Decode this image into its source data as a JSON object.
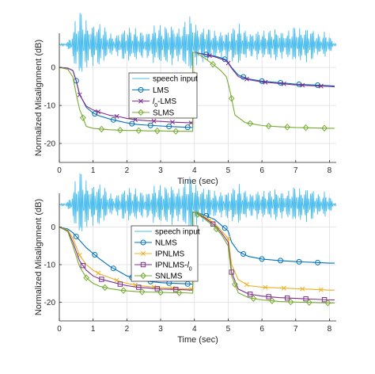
{
  "chart_data": [
    {
      "type": "line",
      "xlabel": "Time (sec)",
      "ylabel": "Normalized Misalignment (dB)",
      "xlim": [
        0,
        8.2
      ],
      "ylim": [
        -25,
        9
      ],
      "xticks": [
        0,
        1,
        2,
        3,
        4,
        5,
        6,
        7,
        8
      ],
      "yticks": [
        0,
        -10,
        -20
      ],
      "grid": true,
      "legend_position": "center",
      "speech_input": {
        "name": "speech input",
        "color": "#4dbeee",
        "baseline": 6
      },
      "series": [
        {
          "name": "LMS",
          "color": "#0072bd",
          "marker": "circle",
          "x": [
            0,
            0.25,
            0.4,
            0.5,
            0.6,
            0.8,
            1.0,
            1.2,
            1.5,
            1.8,
            2.0,
            2.3,
            2.6,
            3.0,
            3.4,
            3.7,
            3.95,
            4.02,
            4.1,
            4.3,
            4.6,
            4.8,
            4.95,
            5.1,
            5.3,
            5.6,
            6.0,
            6.5,
            7.0,
            7.5,
            8.0,
            8.15
          ],
          "y": [
            0,
            -0.2,
            -0.8,
            -3.5,
            -7.0,
            -10.5,
            -12.0,
            -12.8,
            -13.6,
            -14.2,
            -14.6,
            -15.0,
            -15.2,
            -15.4,
            -15.6,
            -15.7,
            -15.8,
            4.0,
            3.8,
            3.5,
            3.0,
            2.5,
            2.0,
            0.0,
            -2.0,
            -3.0,
            -3.6,
            -4.0,
            -4.4,
            -4.6,
            -4.8,
            -4.9
          ]
        },
        {
          "name": "l0-LMS",
          "color": "#7e2f8e",
          "marker": "x",
          "x": [
            0,
            0.25,
            0.4,
            0.5,
            0.6,
            0.8,
            1.0,
            1.2,
            1.5,
            1.8,
            2.0,
            2.3,
            2.6,
            3.0,
            3.4,
            3.7,
            3.95,
            4.02,
            4.1,
            4.3,
            4.6,
            4.8,
            4.95,
            5.1,
            5.3,
            5.6,
            6.0,
            6.5,
            7.0,
            7.5,
            8.0,
            8.15
          ],
          "y": [
            0,
            -0.2,
            -0.8,
            -3.5,
            -7.2,
            -10.2,
            -11.2,
            -11.8,
            -12.6,
            -13.0,
            -13.4,
            -13.8,
            -14.0,
            -14.2,
            -14.4,
            -14.5,
            -14.6,
            4.0,
            3.8,
            3.4,
            2.8,
            2.2,
            1.8,
            -0.2,
            -2.4,
            -3.2,
            -3.8,
            -4.2,
            -4.6,
            -4.8,
            -5.0,
            -5.1
          ]
        },
        {
          "name": "SLMS",
          "color": "#77ac30",
          "marker": "diamond",
          "x": [
            0,
            0.25,
            0.4,
            0.5,
            0.6,
            0.8,
            1.0,
            1.2,
            1.5,
            1.8,
            2.0,
            2.3,
            2.6,
            3.0,
            3.4,
            3.7,
            3.95,
            4.02,
            4.1,
            4.3,
            4.6,
            4.8,
            4.95,
            5.05,
            5.2,
            5.5,
            6.0,
            6.5,
            7.0,
            7.5,
            8.0,
            8.15
          ],
          "y": [
            0,
            -0.5,
            -2.5,
            -7.0,
            -11.0,
            -15.5,
            -16.0,
            -16.2,
            -16.4,
            -16.5,
            -16.6,
            -16.6,
            -16.7,
            -16.7,
            -16.8,
            -16.8,
            -16.8,
            4.0,
            3.6,
            2.5,
            0.5,
            -1.0,
            -2.5,
            -6.0,
            -12.5,
            -14.5,
            -15.3,
            -15.6,
            -15.8,
            -15.9,
            -16.0,
            -16.0
          ]
        }
      ]
    },
    {
      "type": "line",
      "xlabel": "Time (sec)",
      "ylabel": "Normalized Misalignment (dB)",
      "xlim": [
        0,
        8.2
      ],
      "ylim": [
        -25,
        9
      ],
      "xticks": [
        0,
        1,
        2,
        3,
        4,
        5,
        6,
        7,
        8
      ],
      "yticks": [
        0,
        -10,
        -20
      ],
      "grid": true,
      "legend_position": "center",
      "speech_input": {
        "name": "speech input",
        "color": "#4dbeee",
        "baseline": 6
      },
      "series": [
        {
          "name": "NLMS",
          "color": "#0072bd",
          "marker": "circle",
          "x": [
            0,
            0.25,
            0.4,
            0.6,
            0.8,
            1.0,
            1.2,
            1.5,
            1.8,
            2.0,
            2.3,
            2.6,
            3.0,
            3.4,
            3.7,
            3.95,
            4.02,
            4.1,
            4.3,
            4.6,
            4.8,
            5.0,
            5.1,
            5.3,
            5.6,
            6.0,
            6.5,
            7.0,
            7.5,
            8.0,
            8.15
          ],
          "y": [
            0,
            -0.5,
            -1.5,
            -3.5,
            -5.5,
            -7.0,
            -8.5,
            -10.5,
            -12.0,
            -13.0,
            -13.8,
            -14.4,
            -14.8,
            -15.0,
            -15.1,
            -15.2,
            4.0,
            3.8,
            3.2,
            2.0,
            0.5,
            -1.0,
            -4.0,
            -6.5,
            -7.8,
            -8.5,
            -8.9,
            -9.2,
            -9.4,
            -9.6,
            -9.6
          ]
        },
        {
          "name": "IPNLMS",
          "color": "#edb120",
          "marker": "x",
          "x": [
            0,
            0.25,
            0.4,
            0.6,
            0.8,
            1.0,
            1.2,
            1.5,
            1.8,
            2.0,
            2.3,
            2.6,
            3.0,
            3.4,
            3.7,
            3.95,
            4.02,
            4.1,
            4.3,
            4.6,
            4.8,
            5.0,
            5.1,
            5.3,
            5.6,
            6.0,
            6.5,
            7.0,
            7.5,
            8.0,
            8.15
          ],
          "y": [
            0,
            -0.8,
            -3.0,
            -7.5,
            -10.0,
            -11.5,
            -12.5,
            -13.5,
            -14.5,
            -15.0,
            -15.5,
            -15.8,
            -16.1,
            -16.3,
            -16.4,
            -16.5,
            4.0,
            3.6,
            2.8,
            1.0,
            -1.0,
            -3.0,
            -10.0,
            -14.0,
            -15.6,
            -16.0,
            -16.2,
            -16.4,
            -16.6,
            -16.8,
            -16.8
          ]
        },
        {
          "name": "IPNLMS-l0",
          "color": "#7e2f8e",
          "marker": "square",
          "x": [
            0,
            0.25,
            0.4,
            0.6,
            0.8,
            1.0,
            1.2,
            1.5,
            1.8,
            2.0,
            2.3,
            2.6,
            3.0,
            3.4,
            3.7,
            3.95,
            4.02,
            4.1,
            4.3,
            4.6,
            4.8,
            5.0,
            5.1,
            5.3,
            5.6,
            6.0,
            6.5,
            7.0,
            7.5,
            8.0,
            8.15
          ],
          "y": [
            0,
            -1.0,
            -4.0,
            -9.0,
            -11.5,
            -13.0,
            -13.8,
            -14.5,
            -15.2,
            -15.6,
            -16.0,
            -16.2,
            -16.5,
            -16.6,
            -16.7,
            -16.8,
            4.0,
            3.5,
            2.5,
            0.5,
            -1.5,
            -4.0,
            -12.0,
            -16.5,
            -17.8,
            -18.4,
            -18.8,
            -19.0,
            -19.2,
            -19.4,
            -19.4
          ]
        },
        {
          "name": "SNLMS",
          "color": "#77ac30",
          "marker": "diamond",
          "x": [
            0,
            0.25,
            0.4,
            0.6,
            0.8,
            1.0,
            1.2,
            1.5,
            1.8,
            2.0,
            2.3,
            2.6,
            3.0,
            3.4,
            3.7,
            3.95,
            4.02,
            4.1,
            4.3,
            4.6,
            4.8,
            5.0,
            5.1,
            5.3,
            5.6,
            6.0,
            6.5,
            7.0,
            7.5,
            8.0,
            8.15
          ],
          "y": [
            0,
            -1.2,
            -5.0,
            -10.5,
            -13.5,
            -15.0,
            -15.8,
            -16.4,
            -16.8,
            -17.0,
            -17.2,
            -17.3,
            -17.4,
            -17.5,
            -17.5,
            -17.6,
            4.0,
            3.4,
            2.2,
            0.0,
            -2.0,
            -5.0,
            -13.0,
            -17.5,
            -18.8,
            -19.4,
            -19.8,
            -20.0,
            -20.1,
            -20.2,
            -20.2
          ]
        }
      ]
    }
  ]
}
